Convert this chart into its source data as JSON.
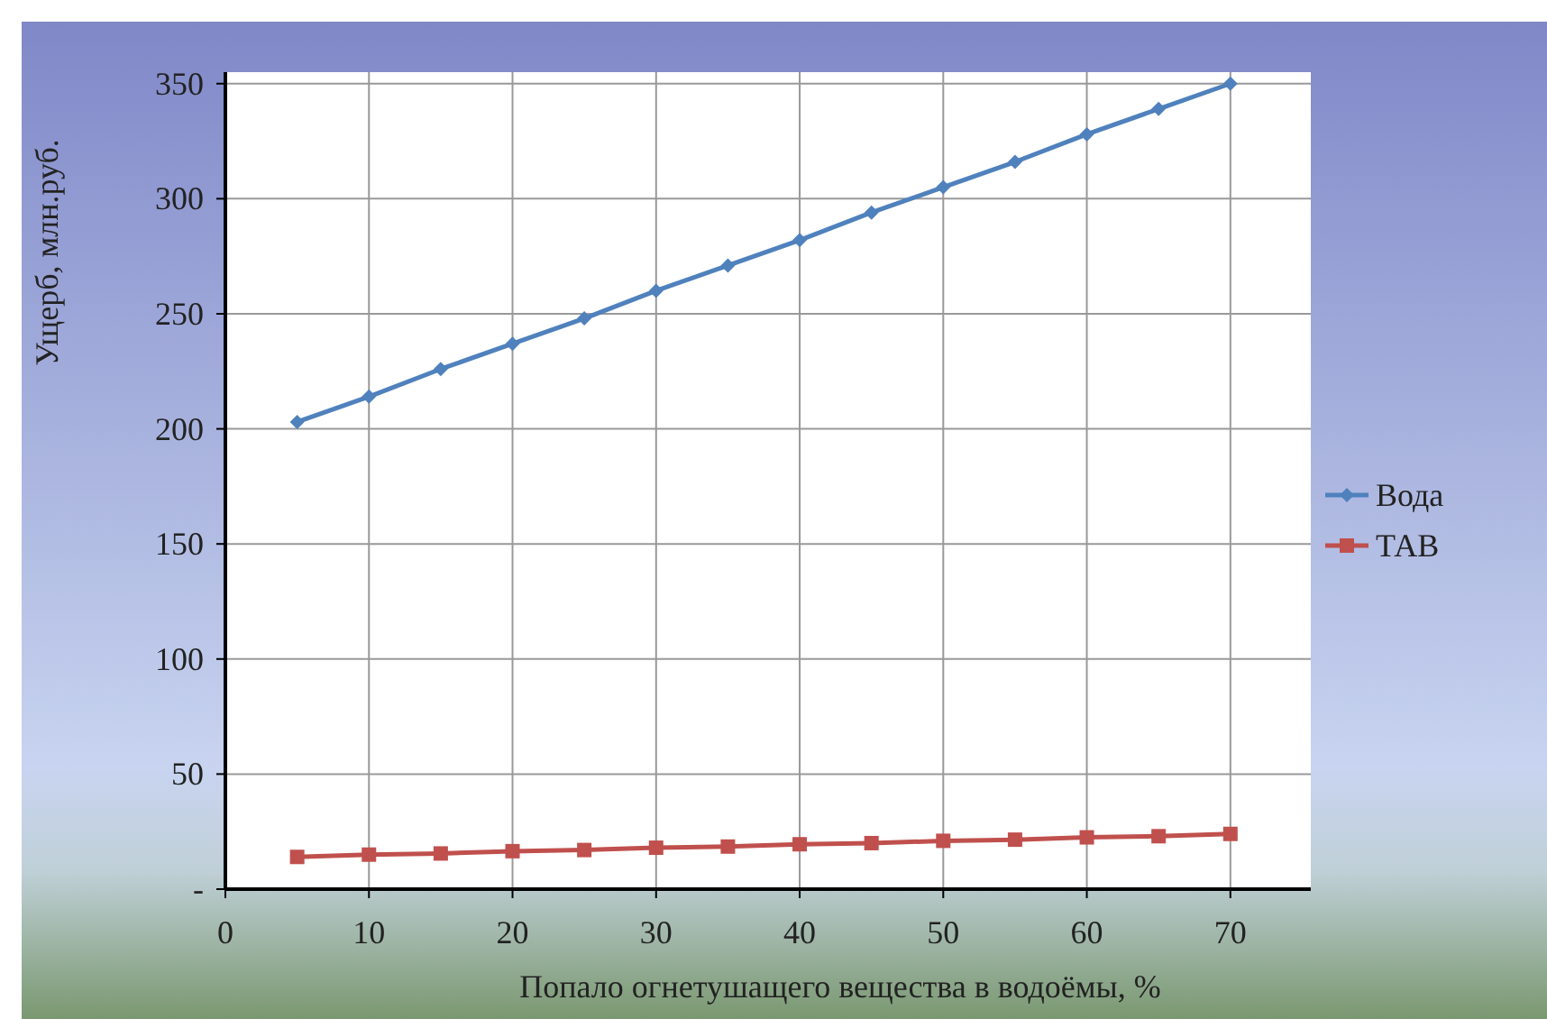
{
  "chart_data": {
    "type": "line",
    "ylabel": "Ущерб, млн.руб.",
    "xlabel": "Попало огнетушащего вещества в водоёмы,  %",
    "x": [
      5,
      10,
      15,
      20,
      25,
      30,
      35,
      40,
      45,
      50,
      55,
      60,
      65,
      70
    ],
    "series": [
      {
        "name": "Вода",
        "color": "#4f81bd",
        "marker": "diamond",
        "values": [
          203,
          214,
          226,
          237,
          248,
          260,
          271,
          282,
          294,
          305,
          316,
          328,
          339,
          350
        ]
      },
      {
        "name": "ТАВ",
        "color": "#c0504d",
        "marker": "square",
        "values": [
          14,
          15,
          15.5,
          16.5,
          17,
          18,
          18.5,
          19.5,
          20,
          21,
          21.5,
          22.5,
          23,
          24
        ]
      }
    ],
    "xlim": [
      0,
      75.6
    ],
    "xticks": [
      0,
      10,
      20,
      30,
      40,
      50,
      60,
      70
    ],
    "ylim": [
      0,
      355
    ],
    "yticks": [
      {
        "value": 0,
        "label": "-"
      },
      50,
      100,
      150,
      200,
      250,
      300,
      350
    ],
    "grid": true,
    "legend": "right",
    "line_style": "solid"
  }
}
